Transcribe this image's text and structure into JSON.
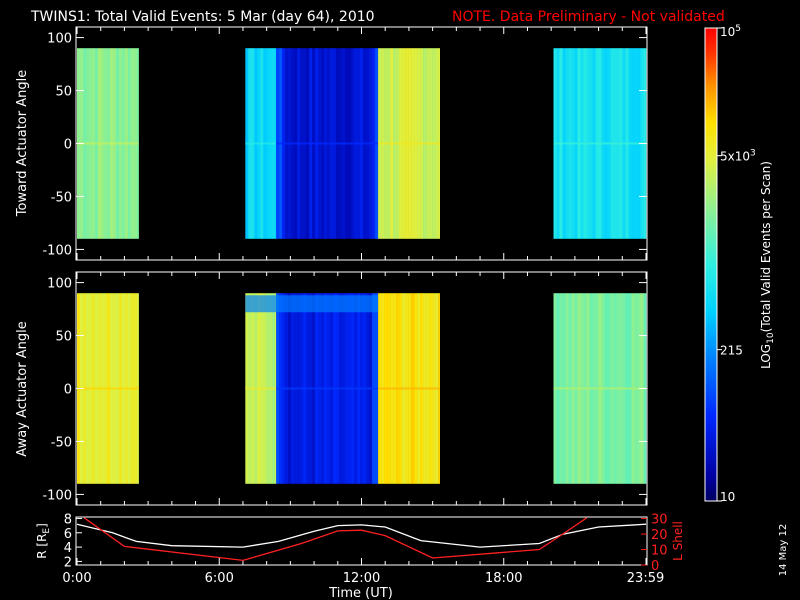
{
  "header": {
    "title": "TWINS1: Total Valid Events:  5 Mar (day  64), 2010",
    "note": "NOTE. Data Preliminary - Not validated",
    "note_color": "#ff0000"
  },
  "side_date": "14 May 12",
  "chart_data": [
    {
      "type": "heatmap",
      "panel": "toward",
      "ylabel": "Toward Actuator Angle",
      "ylim": [
        -110,
        110
      ],
      "yticks": [
        "100",
        "50",
        "0",
        "-50",
        "-100"
      ],
      "y_extent": [
        -90,
        90
      ],
      "xlim_hours": [
        0,
        24
      ],
      "blocks": [
        {
          "start_h": 0.0,
          "end_h": 2.6,
          "level": 0.62
        },
        {
          "start_h": 7.1,
          "end_h": 8.4,
          "level": 0.42
        },
        {
          "start_h": 8.4,
          "end_h": 12.7,
          "level": 0.12
        },
        {
          "start_h": 12.7,
          "end_h": 15.3,
          "level": 0.7
        },
        {
          "start_h": 20.1,
          "end_h": 24.0,
          "level": 0.45
        }
      ]
    },
    {
      "type": "heatmap",
      "panel": "away",
      "ylabel": "Away Actuator Angle",
      "ylim": [
        -110,
        110
      ],
      "yticks": [
        "100",
        "50",
        "0",
        "-50",
        "-100"
      ],
      "y_extent": [
        -90,
        90
      ],
      "xlim_hours": [
        0,
        24
      ],
      "blocks": [
        {
          "start_h": 0.0,
          "end_h": 2.6,
          "level": 0.75
        },
        {
          "start_h": 7.1,
          "end_h": 8.4,
          "level": 0.68
        },
        {
          "start_h": 8.4,
          "end_h": 12.7,
          "level": 0.14
        },
        {
          "start_h": 12.7,
          "end_h": 15.3,
          "level": 0.78
        },
        {
          "start_h": 20.1,
          "end_h": 24.0,
          "level": 0.6
        }
      ]
    },
    {
      "type": "line",
      "panel": "orbit",
      "ylabel_left": "R [R",
      "ylabel_left_sub": "E",
      "ylabel_left_end": "]",
      "ylabel_right": "L Shell",
      "yticks_left": [
        "8",
        "6",
        "4",
        "2"
      ],
      "yticks_right": [
        "30",
        "20",
        "10",
        "0"
      ],
      "ylim_left": [
        1.5,
        8.2
      ],
      "ylim_right": [
        0,
        31
      ],
      "xlabel": "Time (UT)",
      "xticks": [
        "0:00",
        "6:00",
        "12:00",
        "18:00",
        "23:59"
      ],
      "xtick_hours": [
        0,
        6,
        12,
        18,
        23.98
      ],
      "series": [
        {
          "color": "#ffffff",
          "x": [
            0,
            1.5,
            2.5,
            4,
            7,
            8.5,
            10,
            11,
            12,
            13,
            14.5,
            17,
            19.5,
            20.5,
            22,
            24
          ],
          "y": [
            7.2,
            6.0,
            4.8,
            4.2,
            4.0,
            4.8,
            6.2,
            7.0,
            7.1,
            6.8,
            4.9,
            4.0,
            4.5,
            5.8,
            6.8,
            7.2
          ]
        },
        {
          "color": "#ff2020",
          "axis": "right",
          "x": [
            0.3,
            2.0,
            7.0,
            9.5,
            11.0,
            12.0,
            13.0,
            15.0,
            19.5,
            20.5,
            21.5
          ],
          "y": [
            30.5,
            12.0,
            3.0,
            14.0,
            22.0,
            22.5,
            19.0,
            4.5,
            10.0,
            20.0,
            30.5
          ]
        }
      ]
    },
    {
      "type": "colorbar",
      "label": "LOG",
      "label_sub": "10",
      "label_rest": "(Total Valid  Events per Scan)",
      "ticks": [
        {
          "base": "10",
          "exp": "5",
          "level": 1.0
        },
        {
          "base": "5x10",
          "exp": "3",
          "level": 0.73
        },
        {
          "base": "215",
          "exp": "",
          "level": 0.32
        },
        {
          "base": "10",
          "exp": "",
          "level": 0.0
        }
      ]
    }
  ]
}
